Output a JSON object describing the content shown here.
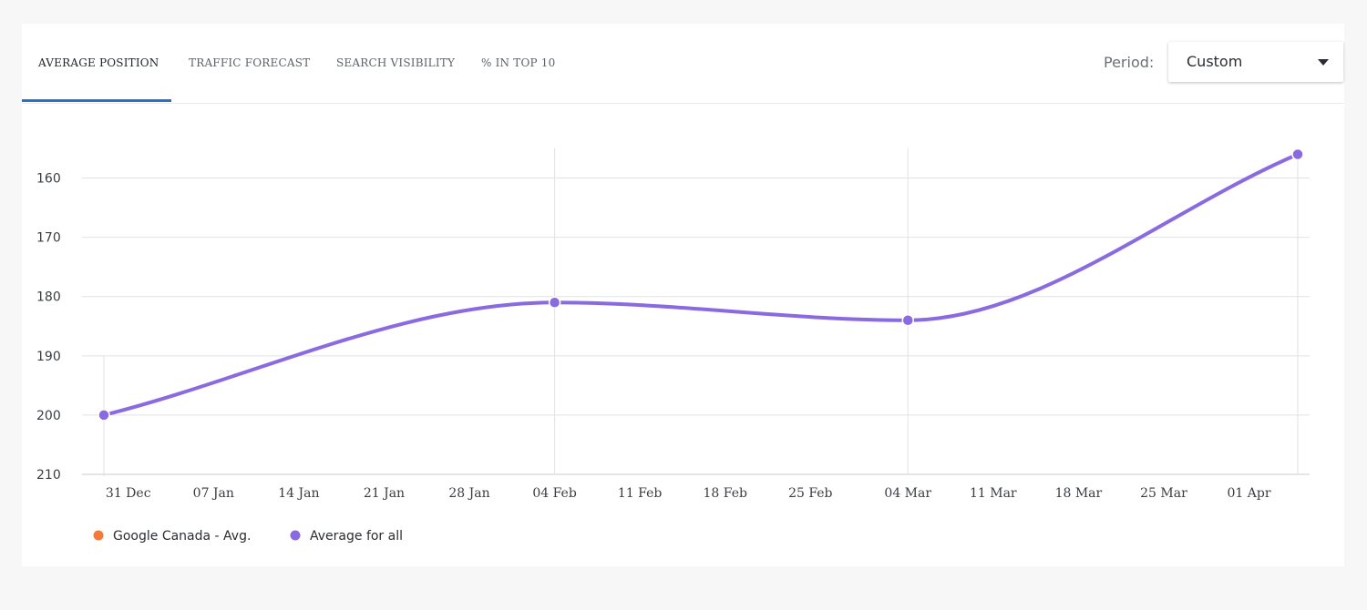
{
  "tabs": [
    {
      "label": "AVERAGE POSITION",
      "active": true
    },
    {
      "label": "TRAFFIC FORECAST",
      "active": false
    },
    {
      "label": "SEARCH VISIBILITY",
      "active": false
    },
    {
      "label": "% IN TOP 10",
      "active": false
    }
  ],
  "period": {
    "label": "Period:",
    "value": "Custom",
    "icon": "chevron-down-icon"
  },
  "colors": {
    "accent": "#2a72c8",
    "series_google": "#f47a3c",
    "series_all": "#8a6ae0",
    "grid": "#e1e2e5"
  },
  "chart_data": {
    "type": "line",
    "title": "",
    "xlabel": "",
    "ylabel": "",
    "y_inverted": true,
    "ylim": [
      155,
      210
    ],
    "yticks": [
      160,
      170,
      180,
      190,
      200,
      210
    ],
    "x_tick_labels": [
      "31 Dec",
      "07 Jan",
      "14 Jan",
      "21 Jan",
      "28 Jan",
      "04 Feb",
      "11 Feb",
      "18 Feb",
      "25 Feb",
      "04 Mar",
      "11 Mar",
      "18 Mar",
      "25 Mar",
      "01 Apr"
    ],
    "x_ticks": [
      "2023-12-31",
      "2024-01-07",
      "2024-01-14",
      "2024-01-21",
      "2024-01-28",
      "2024-02-04",
      "2024-02-11",
      "2024-02-18",
      "2024-02-25",
      "2024-03-04",
      "2024-03-11",
      "2024-03-18",
      "2024-03-25",
      "2024-04-01"
    ],
    "xlim": [
      "2023-12-29",
      "2024-04-05"
    ],
    "grid": {
      "horizontal": true,
      "vertical_at": [
        "2024-02-04",
        "2024-03-04",
        "2024-04-05"
      ]
    },
    "legend_position": "bottom-left",
    "series": [
      {
        "name": "Google Canada - Avg.",
        "color": "#f47a3c",
        "points": []
      },
      {
        "name": "Average for all",
        "color": "#8a6ae0",
        "points": [
          {
            "x": "2023-12-29",
            "y": 200
          },
          {
            "x": "2024-02-04",
            "y": 181
          },
          {
            "x": "2024-03-04",
            "y": 184
          },
          {
            "x": "2024-04-05",
            "y": 156
          }
        ]
      }
    ]
  }
}
